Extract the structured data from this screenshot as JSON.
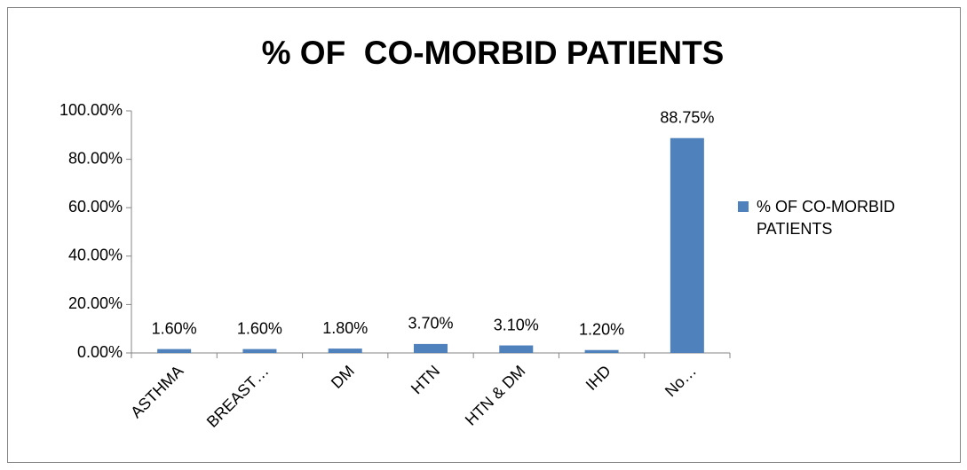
{
  "chart_data": {
    "type": "bar",
    "title": "% OF  CO-MORBID PATIENTS",
    "categories": [
      "ASTHMA",
      "BREAST…",
      "DM",
      "HTN",
      "HTN & DM",
      "IHD",
      "No…"
    ],
    "series": [
      {
        "name": "% OF CO-MORBID PATIENTS",
        "color": "#4f81bd",
        "values": [
          1.6,
          1.6,
          1.8,
          3.7,
          3.1,
          1.2,
          88.75
        ],
        "value_labels": [
          "1.60%",
          "1.60%",
          "1.80%",
          "3.70%",
          "3.10%",
          "1.20%",
          "88.75%"
        ]
      }
    ],
    "ylim": [
      0,
      100
    ],
    "yticks": [
      {
        "value": 0,
        "label": "0.00%"
      },
      {
        "value": 20,
        "label": "20.00%"
      },
      {
        "value": 40,
        "label": "40.00%"
      },
      {
        "value": 60,
        "label": "60.00%"
      },
      {
        "value": 80,
        "label": "80.00%"
      },
      {
        "value": 100,
        "label": "100.00%"
      }
    ],
    "grid": false,
    "legend": "right"
  }
}
